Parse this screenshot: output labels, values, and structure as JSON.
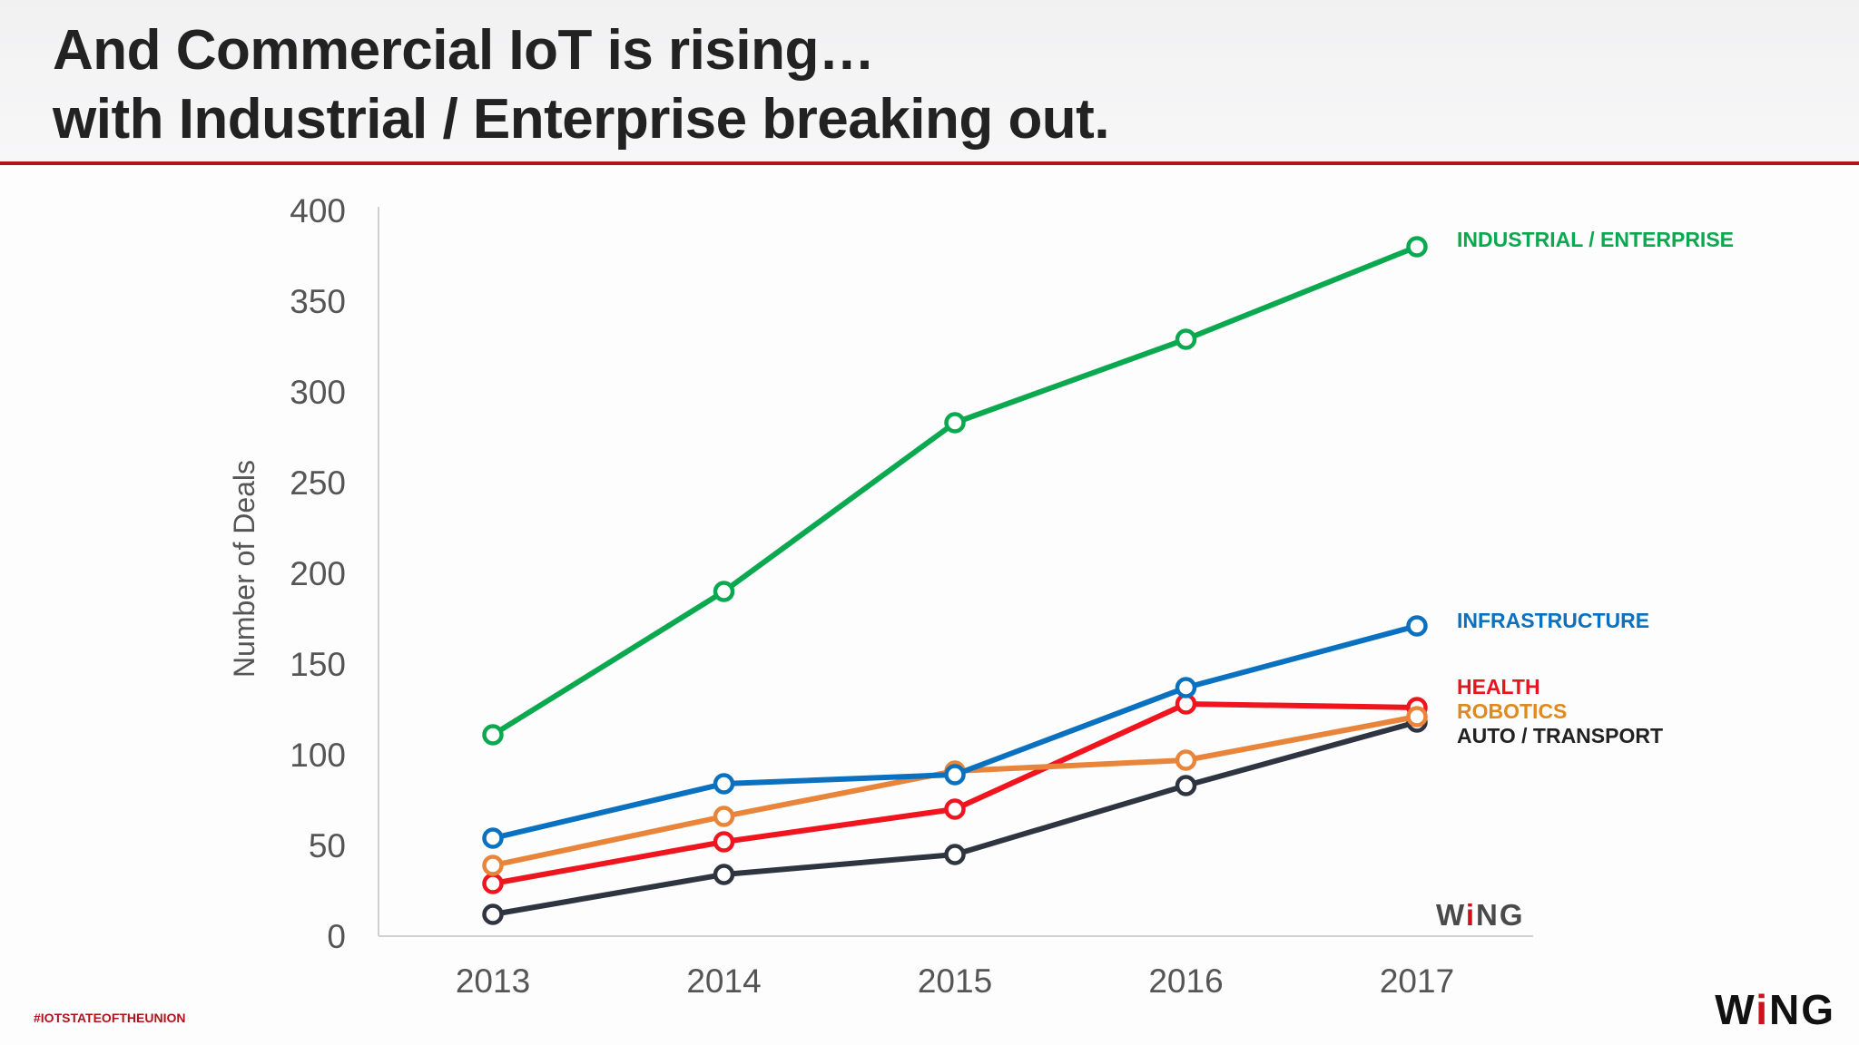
{
  "slide": {
    "title_line1": "And Commercial IoT is rising…",
    "title_line2": "with Industrial / Enterprise breaking out.",
    "hashtag": "#IOTSTATEOFTHEUNION",
    "logo": "WiNG",
    "accent_color": "#b3121a"
  },
  "chart_data": {
    "type": "line",
    "title": "",
    "xlabel": "",
    "ylabel": "Number of Deals",
    "x": [
      "2013",
      "2014",
      "2015",
      "2016",
      "2017"
    ],
    "ylim": [
      0,
      400
    ],
    "yticks": [
      "0",
      "50",
      "100",
      "150",
      "200",
      "250",
      "300",
      "350",
      "400"
    ],
    "grid": false,
    "legend": "right, labels at line ends",
    "series": [
      {
        "name": "INDUSTRIAL / ENTERPRISE",
        "color": "#0aa84f",
        "values": [
          111,
          190,
          283,
          329,
          380
        ]
      },
      {
        "name": "INFRASTRUCTURE",
        "color": "#0a70c0",
        "values": [
          54,
          84,
          89,
          137,
          171
        ]
      },
      {
        "name": "HEALTH",
        "color": "#f0141e",
        "values": [
          29,
          52,
          70,
          128,
          126
        ]
      },
      {
        "name": "ROBOTICS",
        "color": "#e8853a",
        "values": [
          39,
          66,
          91,
          97,
          121
        ]
      },
      {
        "name": "AUTO / TRANSPORT",
        "color": "#2e3440",
        "values": [
          12,
          34,
          45,
          83,
          118
        ]
      }
    ],
    "label_colors": [
      "#0aa84f",
      "#0a70c0",
      "#e8141e",
      "#e08a1e",
      "#222222"
    ]
  }
}
